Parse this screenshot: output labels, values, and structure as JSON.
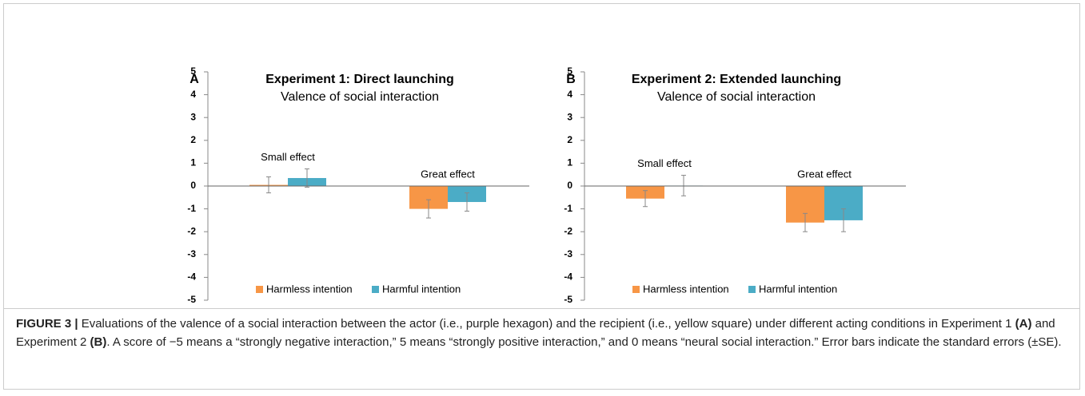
{
  "chart_data": [
    {
      "type": "bar",
      "panel": "A",
      "title": "Experiment 1: Direct launching",
      "subtitle": "Valence of social interaction",
      "categories": [
        "Small effect",
        "Great effect"
      ],
      "series": [
        {
          "name": "Harmless intention",
          "color": "#f79646",
          "values": [
            0.05,
            -1.0
          ],
          "errors": [
            0.35,
            0.4
          ]
        },
        {
          "name": "Harmful intention",
          "color": "#4bacc6",
          "values": [
            0.35,
            -0.7
          ],
          "errors": [
            0.4,
            0.4
          ]
        }
      ],
      "ylim": [
        -5,
        5
      ],
      "yticks": [
        5,
        4,
        3,
        2,
        1,
        0,
        -1,
        -2,
        -3,
        -4,
        -5
      ]
    },
    {
      "type": "bar",
      "panel": "B",
      "title": "Experiment 2: Extended launching",
      "subtitle": "Valence of social interaction",
      "categories": [
        "Small effect",
        "Great effect"
      ],
      "series": [
        {
          "name": "Harmless intention",
          "color": "#f79646",
          "values": [
            -0.55,
            -1.6
          ],
          "errors": [
            0.35,
            0.4
          ]
        },
        {
          "name": "Harmful intention",
          "color": "#4bacc6",
          "values": [
            0.02,
            -1.5
          ],
          "errors": [
            0.45,
            0.5
          ]
        }
      ],
      "ylim": [
        -5,
        5
      ],
      "yticks": [
        5,
        4,
        3,
        2,
        1,
        0,
        -1,
        -2,
        -3,
        -4,
        -5
      ]
    }
  ],
  "caption": {
    "label": "FIGURE 3 |",
    "text1": " Evaluations of the valence of a social interaction between the actor (i.e., purple hexagon) and the recipient (i.e., yellow square) under different acting conditions in Experiment 1 ",
    "ref_a": "(A)",
    "text2": " and Experiment 2 ",
    "ref_b": "(B)",
    "text3": ". A score of −5 means a “strongly negative interaction,” 5 means “strongly positive interaction,” and 0 means “neural social interaction.” Error bars indicate the standard errors (±SE)."
  }
}
